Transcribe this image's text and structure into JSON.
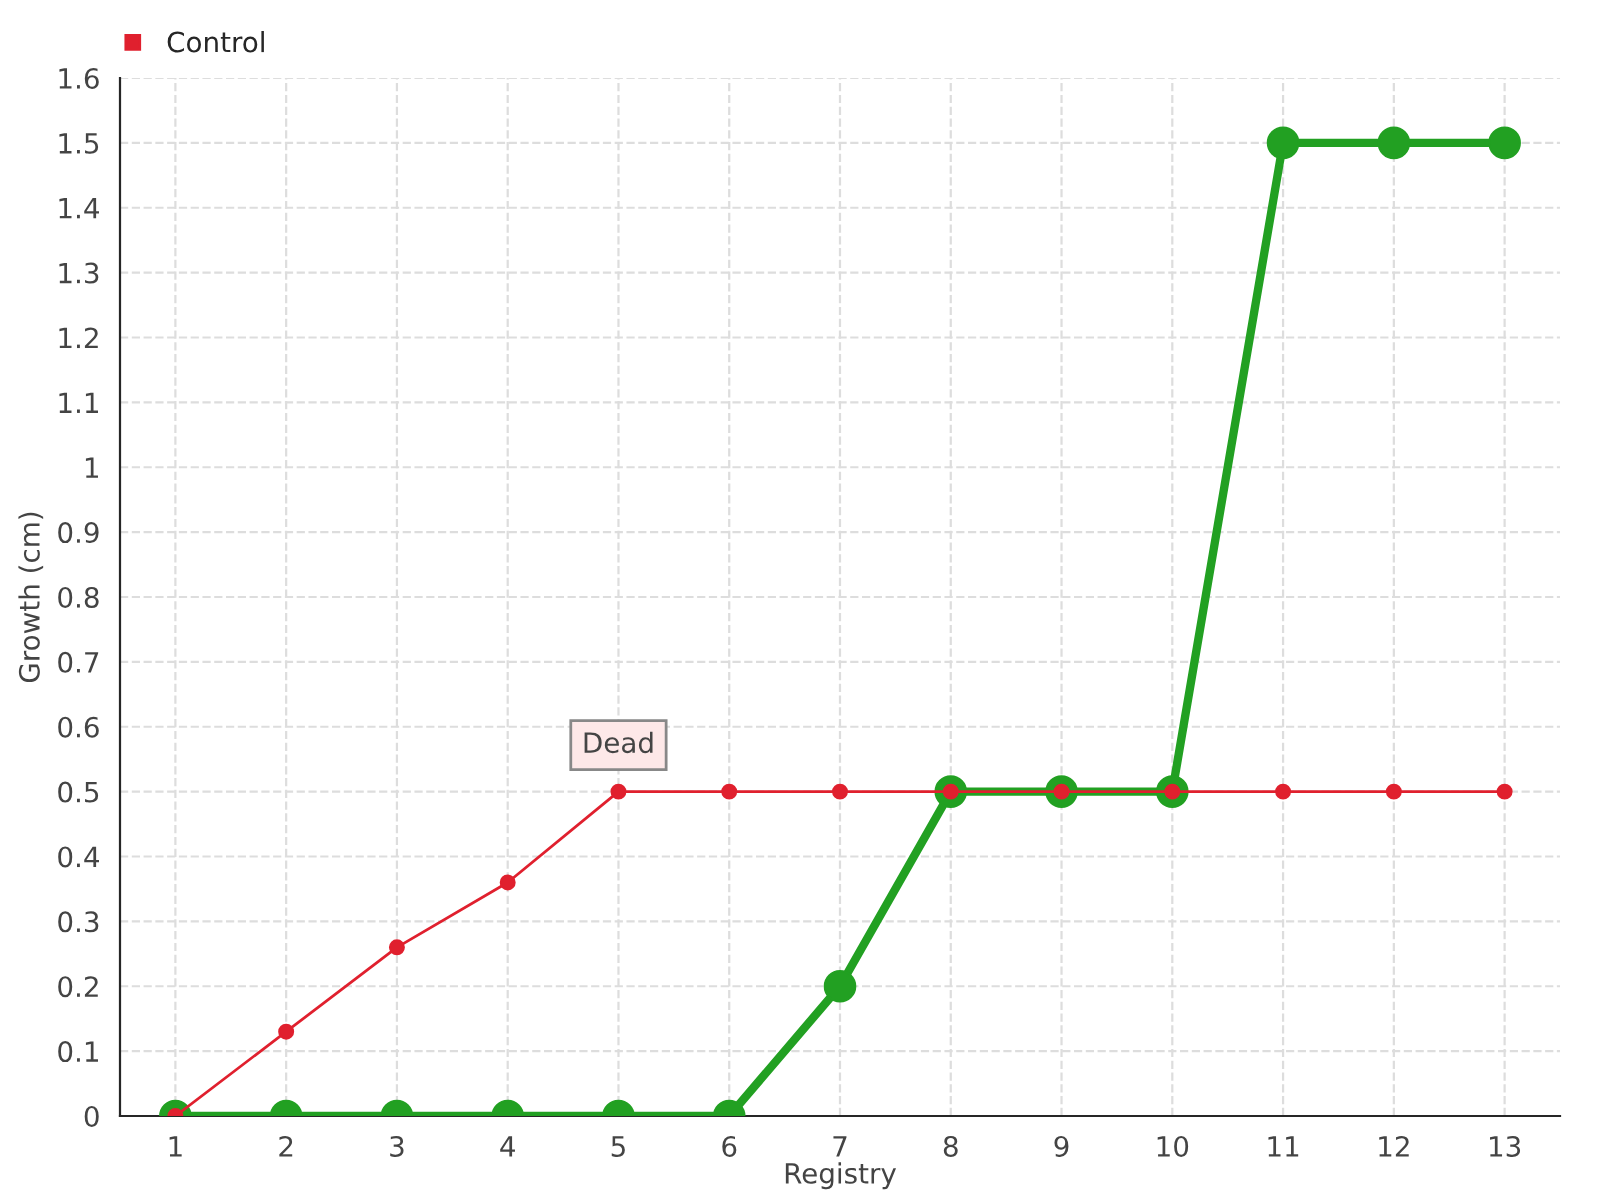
{
  "chart_data": {
    "type": "line",
    "xlabel": "Registry",
    "ylabel": "Growth (cm)",
    "categories": [
      "1",
      "2",
      "3",
      "4",
      "5",
      "6",
      "7",
      "8",
      "9",
      "10",
      "11",
      "12",
      "13"
    ],
    "series": [
      {
        "color": "#22a022",
        "values": [
          0,
          0,
          0,
          0,
          0,
          0,
          0.2,
          0.5,
          0.5,
          0.5,
          1.5,
          1.5,
          1.5
        ]
      },
      {
        "name": "Control",
        "color": "#e0202e",
        "values": [
          0,
          0.13,
          0.26,
          0.36,
          0.5,
          0.5,
          0.5,
          0.5,
          0.5,
          0.5,
          0.5,
          0.5,
          0.5
        ]
      }
    ],
    "ylim": [
      0,
      1.6
    ],
    "yticks": [
      0,
      0.1,
      0.2,
      0.3,
      0.4,
      0.5,
      0.6,
      0.7,
      0.8,
      0.9,
      1,
      1.1,
      1.2,
      1.3,
      1.4,
      1.5,
      1.6
    ],
    "grid": true,
    "legend": "top left",
    "marker": "circle",
    "line_style": "solid",
    "annotations": [
      {
        "text": "Dead",
        "x": "5",
        "y": 0.5
      }
    ]
  }
}
